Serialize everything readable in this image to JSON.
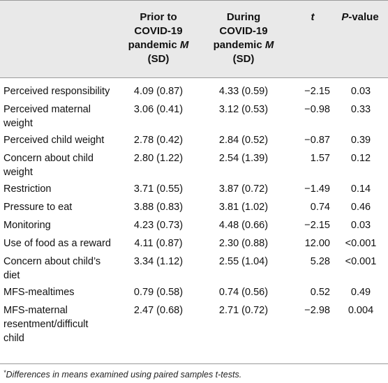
{
  "header": {
    "col1": [
      "Prior to",
      "COVID-19",
      "pandemic",
      "M",
      "(SD)"
    ],
    "col2": [
      "During",
      "COVID-19",
      "pandemic",
      "M",
      "(SD)"
    ],
    "col3": "t",
    "col4_italic": "P",
    "col4_rest": "-value"
  },
  "rows": [
    {
      "label": [
        "Perceived responsibility"
      ],
      "prior": "4.09 (0.87)",
      "during": "4.33 (0.59)",
      "t": "−2.15",
      "p": "0.03"
    },
    {
      "label": [
        "Perceived maternal",
        "weight"
      ],
      "prior": "3.06 (0.41)",
      "during": "3.12 (0.53)",
      "t": "−0.98",
      "p": "0.33"
    },
    {
      "label": [
        "Perceived child weight"
      ],
      "prior": "2.78 (0.42)",
      "during": "2.84 (0.52)",
      "t": "−0.87",
      "p": "0.39"
    },
    {
      "label": [
        "Concern about child",
        "weight"
      ],
      "prior": "2.80 (1.22)",
      "during": "2.54 (1.39)",
      "t": "1.57",
      "p": "0.12"
    },
    {
      "label": [
        "Restriction"
      ],
      "prior": "3.71 (0.55)",
      "during": "3.87 (0.72)",
      "t": "−1.49",
      "p": "0.14"
    },
    {
      "label": [
        "Pressure to eat"
      ],
      "prior": "3.88 (0.83)",
      "during": "3.81 (1.02)",
      "t": "0.74",
      "p": "0.46"
    },
    {
      "label": [
        "Monitoring"
      ],
      "prior": "4.23 (0.73)",
      "during": "4.48 (0.66)",
      "t": "−2.15",
      "p": "0.03"
    },
    {
      "label": [
        "Use of food as a reward"
      ],
      "prior": "4.11 (0.87)",
      "during": "2.30 (0.88)",
      "t": "12.00",
      "p": "<0.001"
    },
    {
      "label": [
        "Concern about child’s",
        "diet"
      ],
      "prior": "3.34 (1.12)",
      "during": "2.55 (1.04)",
      "t": "5.28",
      "p": "<0.001"
    },
    {
      "label": [
        "MFS-mealtimes"
      ],
      "prior": "0.79 (0.58)",
      "during": "0.74 (0.56)",
      "t": "0.52",
      "p": "0.49"
    },
    {
      "label": [
        "MFS-maternal",
        "resentment/difficult",
        "child"
      ],
      "prior": "2.47 (0.68)",
      "during": "2.71 (0.72)",
      "t": "−2.98",
      "p": "0.004"
    }
  ],
  "footnote": {
    "marker": "*",
    "text": "Differences in means examined using paired samples t-tests."
  }
}
